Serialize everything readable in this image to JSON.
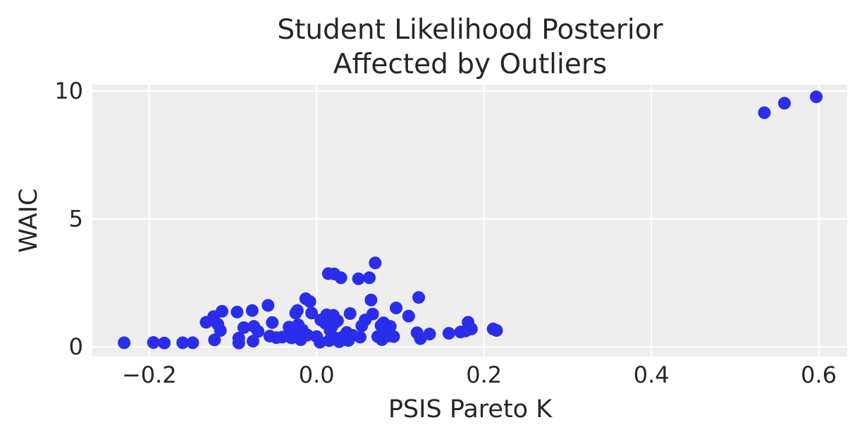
{
  "colors": {
    "plot_background": "#eeeeee",
    "grid": "#ffffff",
    "marker": "#2a2eec",
    "text": "#262626"
  },
  "chart_data": {
    "type": "scatter",
    "title": "Student Likelihood Posterior\nAffected by Outliers",
    "title_lines": [
      "Student Likelihood Posterior",
      "Affected by Outliers"
    ],
    "xlabel": "PSIS Pareto K",
    "ylabel": "WAIC",
    "xlim": [
      -0.268,
      0.634
    ],
    "ylim": [
      -0.38,
      10.25
    ],
    "xticks": [
      -0.2,
      0.0,
      0.2,
      0.4,
      0.6
    ],
    "xtick_labels": [
      "−0.2",
      "0.0",
      "0.2",
      "0.4",
      "0.6"
    ],
    "yticks": [
      0,
      5,
      10
    ],
    "ytick_labels": [
      "0",
      "5",
      "10"
    ],
    "grid": true,
    "series": [
      {
        "points": [
          [
            -0.23,
            0.16
          ],
          [
            -0.195,
            0.17
          ],
          [
            -0.182,
            0.15
          ],
          [
            -0.16,
            0.16
          ],
          [
            -0.148,
            0.16
          ],
          [
            -0.132,
            0.96
          ],
          [
            -0.123,
            1.18
          ],
          [
            -0.122,
            0.27
          ],
          [
            -0.118,
            0.88
          ],
          [
            -0.115,
            0.64
          ],
          [
            -0.113,
            1.39
          ],
          [
            -0.095,
            1.36
          ],
          [
            -0.093,
            0.34
          ],
          [
            -0.093,
            0.15
          ],
          [
            -0.087,
            0.75
          ],
          [
            -0.077,
            1.42
          ],
          [
            -0.076,
            0.22
          ],
          [
            -0.075,
            0.8
          ],
          [
            -0.07,
            0.6
          ],
          [
            -0.058,
            1.62
          ],
          [
            -0.056,
            0.42
          ],
          [
            -0.053,
            0.95
          ],
          [
            -0.048,
            0.36
          ],
          [
            -0.041,
            0.38
          ],
          [
            -0.033,
            0.77
          ],
          [
            -0.03,
            0.35
          ],
          [
            -0.028,
            0.55
          ],
          [
            -0.025,
            1.32
          ],
          [
            -0.023,
            1.42
          ],
          [
            -0.022,
            0.86
          ],
          [
            -0.019,
            0.28
          ],
          [
            -0.017,
            0.66
          ],
          [
            -0.013,
            1.88
          ],
          [
            -0.011,
            0.46
          ],
          [
            -0.008,
            1.77
          ],
          [
            -0.006,
            1.32
          ],
          [
            0.0,
            0.4
          ],
          [
            0.004,
            0.18
          ],
          [
            0.005,
            1.05
          ],
          [
            0.01,
            0.93
          ],
          [
            0.012,
            1.25
          ],
          [
            0.014,
            2.86
          ],
          [
            0.015,
            0.24
          ],
          [
            0.016,
            0.65
          ],
          [
            0.018,
            0.78
          ],
          [
            0.02,
            1.23
          ],
          [
            0.021,
            2.85
          ],
          [
            0.022,
            0.95
          ],
          [
            0.023,
            0.34
          ],
          [
            0.025,
            1.02
          ],
          [
            0.027,
            0.2
          ],
          [
            0.029,
            2.7
          ],
          [
            0.032,
            0.4
          ],
          [
            0.034,
            0.28
          ],
          [
            0.036,
            0.56
          ],
          [
            0.038,
            0.25
          ],
          [
            0.04,
            1.3
          ],
          [
            0.043,
            0.45
          ],
          [
            0.05,
            2.66
          ],
          [
            0.052,
            0.38
          ],
          [
            0.054,
            0.82
          ],
          [
            0.058,
            1.05
          ],
          [
            0.063,
            2.7
          ],
          [
            0.065,
            1.83
          ],
          [
            0.067,
            1.28
          ],
          [
            0.07,
            3.28
          ],
          [
            0.073,
            0.4
          ],
          [
            0.077,
            0.83
          ],
          [
            0.078,
            0.28
          ],
          [
            0.08,
            0.94
          ],
          [
            0.082,
            0.57
          ],
          [
            0.085,
            0.42
          ],
          [
            0.088,
            0.8
          ],
          [
            0.092,
            0.4
          ],
          [
            0.095,
            1.52
          ],
          [
            0.11,
            1.2
          ],
          [
            0.12,
            0.55
          ],
          [
            0.122,
            1.93
          ],
          [
            0.124,
            0.32
          ],
          [
            0.135,
            0.5
          ],
          [
            0.158,
            0.53
          ],
          [
            0.172,
            0.58
          ],
          [
            0.178,
            0.62
          ],
          [
            0.181,
            0.96
          ],
          [
            0.185,
            0.7
          ],
          [
            0.211,
            0.7
          ],
          [
            0.215,
            0.64
          ],
          [
            0.535,
            9.15
          ],
          [
            0.559,
            9.52
          ],
          [
            0.597,
            9.77
          ]
        ]
      }
    ]
  }
}
